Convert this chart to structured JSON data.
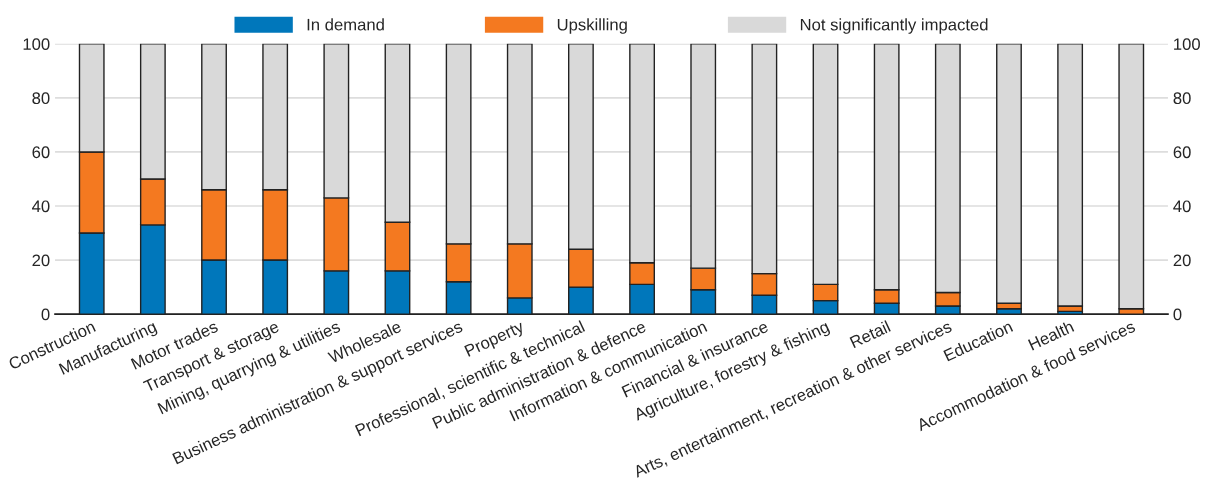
{
  "chart_data": {
    "type": "bar",
    "stacked": true,
    "categories": [
      "Construction",
      "Manufacturing",
      "Motor trades",
      "Transport & storage",
      "Mining, quarrying & utilities",
      "Wholesale",
      "Business administration & support services",
      "Property",
      "Professional, scientific & technical",
      "Public administration & defence",
      "Information & communication",
      "Financial & insurance",
      "Agriculture, forestry & fishing",
      "Retail",
      "Arts, entertainment, recreation & other services",
      "Education",
      "Health",
      "Accommodation & food services"
    ],
    "series": [
      {
        "name": "In demand",
        "color": "#0077bb",
        "values": [
          30,
          33,
          20,
          20,
          16,
          16,
          12,
          6,
          10,
          11,
          9,
          7,
          5,
          4,
          3,
          2,
          1,
          0
        ]
      },
      {
        "name": "Upskilling",
        "color": "#f47920",
        "values": [
          30,
          17,
          26,
          26,
          27,
          18,
          14,
          20,
          14,
          8,
          8,
          8,
          6,
          5,
          5,
          2,
          2,
          2
        ]
      },
      {
        "name": "Not significantly impacted",
        "color": "#d9d9d9",
        "values": [
          40,
          50,
          54,
          54,
          57,
          66,
          74,
          74,
          76,
          81,
          83,
          85,
          89,
          91,
          92,
          96,
          97,
          98
        ]
      }
    ],
    "ylim": [
      0,
      100
    ],
    "yticks": [
      0,
      20,
      40,
      60,
      80,
      100
    ],
    "y2lim": [
      0,
      100
    ],
    "y2ticks": [
      0,
      20,
      40,
      60,
      80,
      100
    ],
    "grid": "y",
    "legend": "top"
  }
}
